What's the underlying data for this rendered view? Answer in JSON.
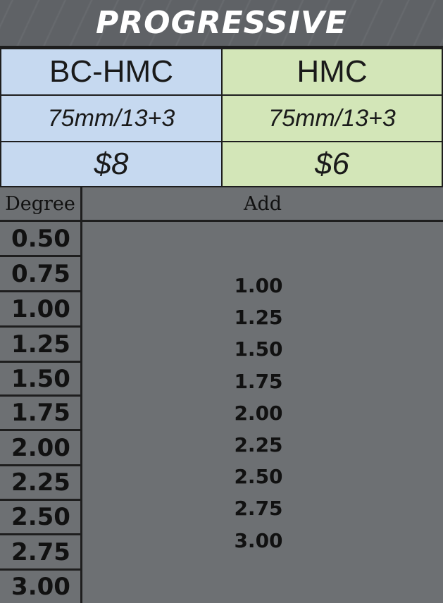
{
  "title": "PROGRESSIVE",
  "columns": [
    {
      "name": "BC-HMC",
      "spec": "75mm/13+3",
      "price": "$8"
    },
    {
      "name": "HMC",
      "spec": "75mm/13+3",
      "price": "$6"
    }
  ],
  "table": {
    "degree_header": "Degree",
    "add_header": "Add",
    "degrees": [
      "0.50",
      "0.75",
      "1.00",
      "1.25",
      "1.50",
      "1.75",
      "2.00",
      "2.25",
      "2.50",
      "2.75",
      "3.00"
    ],
    "adds": [
      "1.00",
      "1.25",
      "1.50",
      "1.75",
      "2.00",
      "2.25",
      "2.50",
      "2.75",
      "3.00"
    ]
  },
  "colors": {
    "blue": "#c6d9f0",
    "green": "#d3e6b8",
    "grey": "#6d7073"
  }
}
